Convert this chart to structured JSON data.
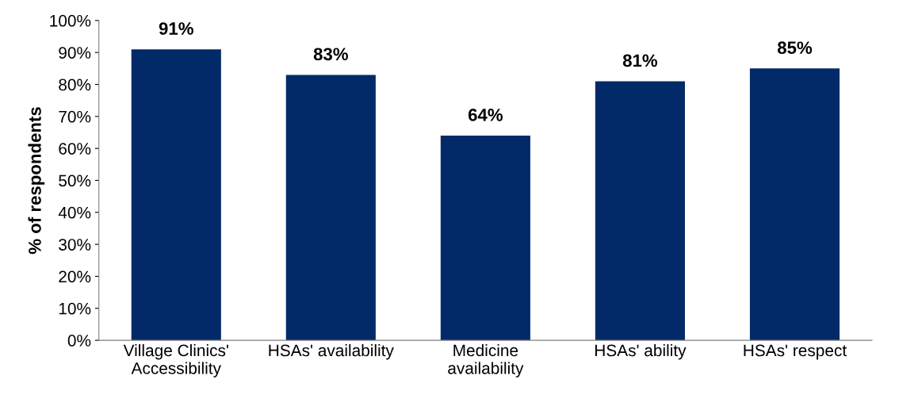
{
  "chart_data": {
    "type": "bar",
    "ylabel": "% of respondents",
    "categories": [
      "Village Clinics'\nAccessibility",
      "HSAs' availability",
      "Medicine\navailability",
      "HSAs' ability",
      "HSAs' respect"
    ],
    "values": [
      91,
      83,
      64,
      81,
      85
    ],
    "value_labels": [
      "91%",
      "83%",
      "64%",
      "81%",
      "85%"
    ],
    "color": "#022a69",
    "ylim": [
      0,
      100
    ],
    "yticks": [
      {
        "value": 0,
        "label": "0%"
      },
      {
        "value": 10,
        "label": "10%"
      },
      {
        "value": 20,
        "label": "20%"
      },
      {
        "value": 30,
        "label": "30%"
      },
      {
        "value": 40,
        "label": "40%"
      },
      {
        "value": 50,
        "label": "50%"
      },
      {
        "value": 60,
        "label": "60%"
      },
      {
        "value": 70,
        "label": "70%"
      },
      {
        "value": 80,
        "label": "80%"
      },
      {
        "value": 90,
        "label": "90%"
      },
      {
        "value": 100,
        "label": "100%"
      }
    ],
    "grid": false
  }
}
